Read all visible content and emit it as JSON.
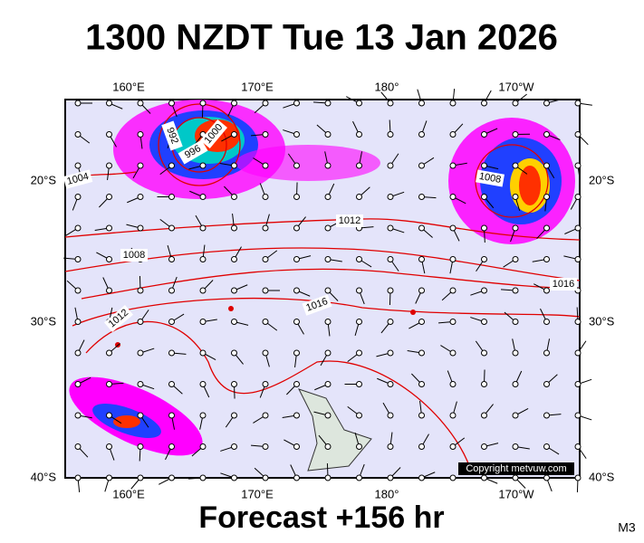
{
  "header": {
    "title": "1300 NZDT Tue 13 Jan 2026"
  },
  "map": {
    "lon_labels_top": [
      "160°E",
      "170°E",
      "180°",
      "170°W"
    ],
    "lon_labels_bottom": [
      "160°E",
      "170°E",
      "180°",
      "170°W"
    ],
    "lat_labels_left": [
      "20°S",
      "30°S",
      "40°S"
    ],
    "lat_labels_right": [
      "20°S",
      "30°S",
      "40°S"
    ],
    "isobar_labels": [
      "1004",
      "1008",
      "1012",
      "1012",
      "1016",
      "1016",
      "1008",
      "992",
      "996",
      "1000"
    ],
    "copyright": "Copyright metvuw.com"
  },
  "footer": {
    "forecast": "Forecast +156 hr",
    "model": "M3"
  }
}
